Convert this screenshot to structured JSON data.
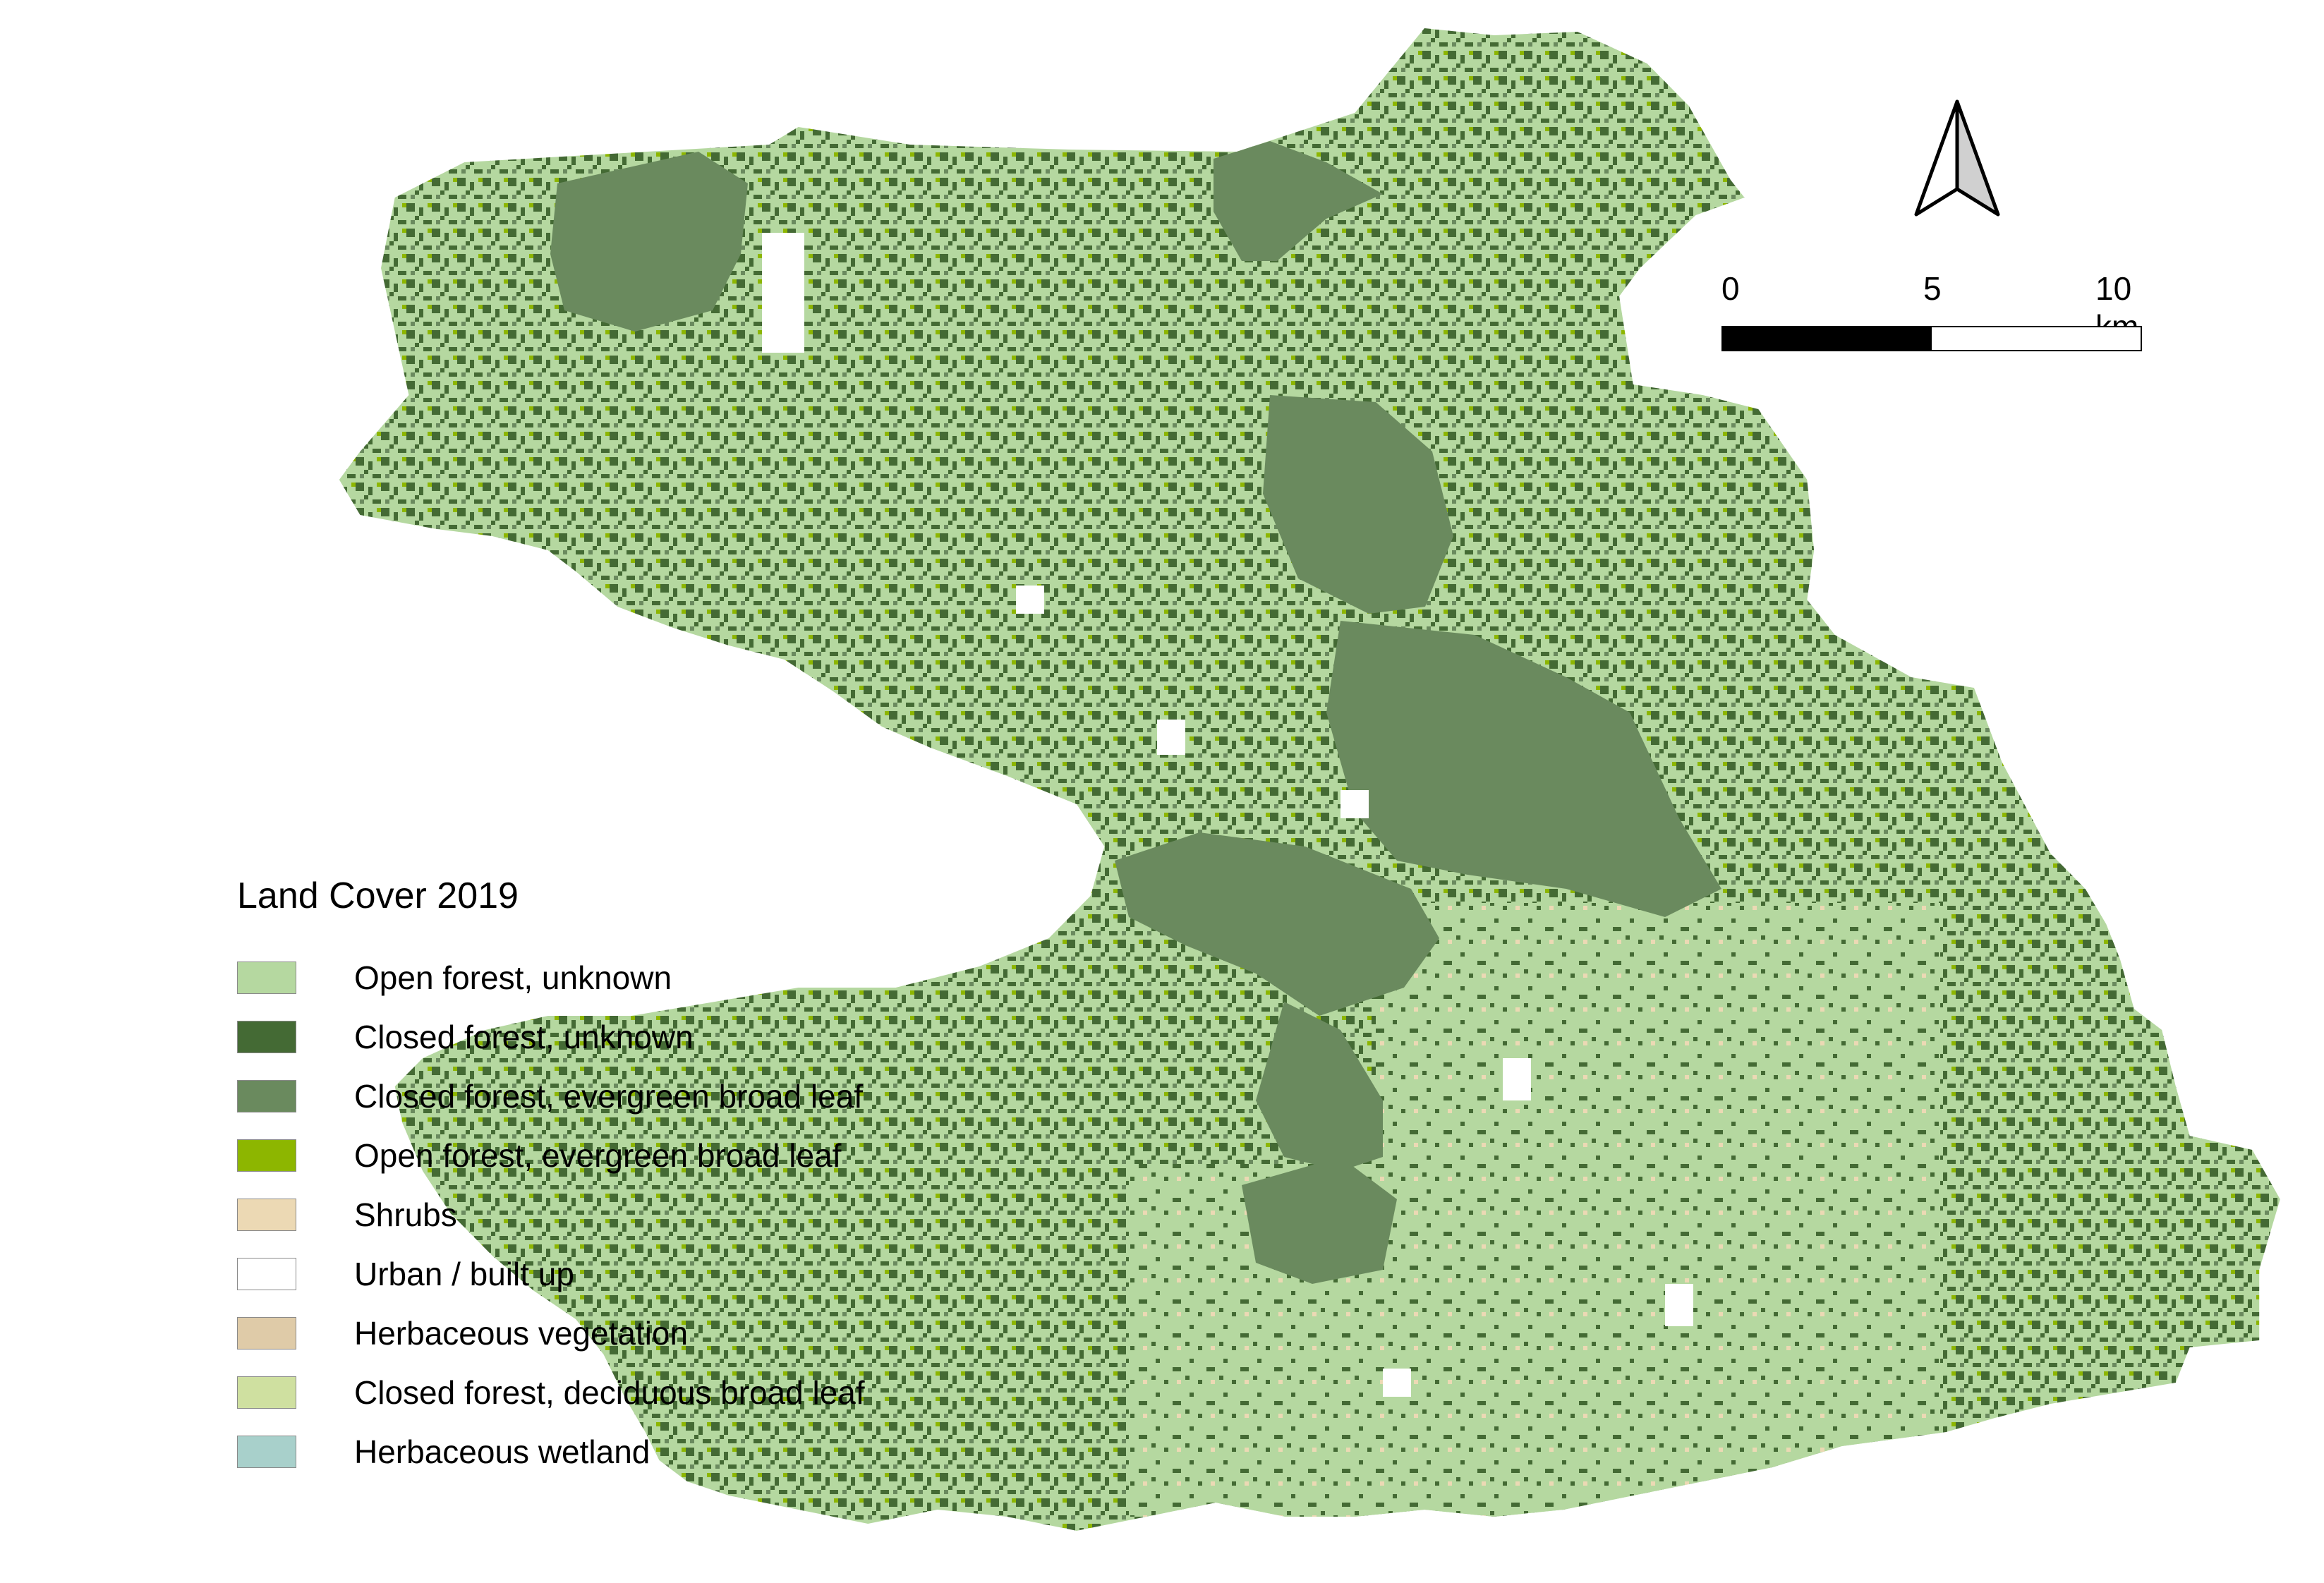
{
  "legend": {
    "title": "Land Cover 2019",
    "items": [
      {
        "label": "Open forest, unknown",
        "color": "#b5d8a0"
      },
      {
        "label": "Closed forest, unknown",
        "color": "#446a34"
      },
      {
        "label": "Closed forest, evergreen broad leaf",
        "color": "#6a8a5e"
      },
      {
        "label": "Open forest, evergreen broad leaf",
        "color": "#8db600"
      },
      {
        "label": "Shrubs",
        "color": "#ecd9b4"
      },
      {
        "label": "Urban / built up",
        "color": "#ffffff"
      },
      {
        "label": "Herbaceous vegetation",
        "color": "#dfcba8"
      },
      {
        "label": "Closed forest, deciduous broad leaf",
        "color": "#cfe0a0"
      },
      {
        "label": "Herbaceous wetland",
        "color": "#a8d0cb"
      }
    ]
  },
  "scale_bar": {
    "labels": [
      "0",
      "5",
      "10 km"
    ]
  },
  "north_arrow": {
    "icon": "north-arrow-icon"
  }
}
